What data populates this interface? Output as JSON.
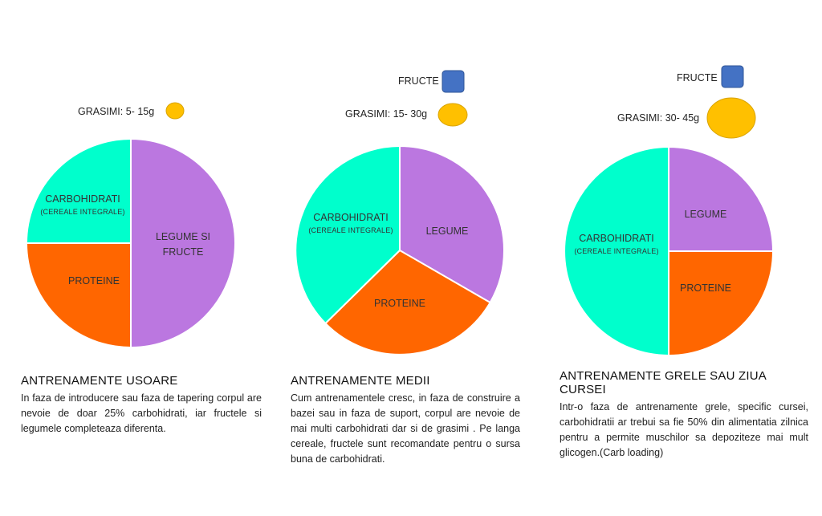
{
  "colors": {
    "carbohidrati": "#00ffcc",
    "proteine": "#ff6600",
    "legume": "#bb77e0",
    "grasimi": "#ffc000",
    "fructe": "#4472c4",
    "divider": "#ffffff"
  },
  "panels": [
    {
      "grasimi_label": "GRASIMI: 5- 15g",
      "fructe_label": null,
      "slices": [
        {
          "key": "legume",
          "label": "LEGUME SI FRUCTE",
          "label_lines": [
            "LEGUME SI",
            "FRUCTE"
          ],
          "sublabel": "",
          "share": 50,
          "color": "#bb77e0"
        },
        {
          "key": "proteine",
          "label": "PROTEINE",
          "label_lines": [
            "PROTEINE"
          ],
          "sublabel": "",
          "share": 25,
          "color": "#ff6600"
        },
        {
          "key": "carbohidrati",
          "label": "CARBOHIDRATI",
          "label_lines": [
            "CARBOHIDRATI"
          ],
          "sublabel": "(CEREALE  INTEGRALE)",
          "share": 25,
          "color": "#00ffcc"
        }
      ],
      "title": "ANTRENAMENTE USOARE",
      "body": "In faza de introducere sau faza de tapering corpul are nevoie de doar 25% carbohidrati, iar fructele si legumele completeaza diferenta."
    },
    {
      "grasimi_label": "GRASIMI: 15- 30g",
      "fructe_label": "FRUCTE",
      "slices": [
        {
          "key": "legume",
          "label": "LEGUME",
          "label_lines": [
            "LEGUME"
          ],
          "sublabel": "",
          "share": 33.33,
          "color": "#bb77e0"
        },
        {
          "key": "proteine",
          "label": "PROTEINE",
          "label_lines": [
            "PROTEINE"
          ],
          "sublabel": "",
          "share": 33.33,
          "color": "#ff6600"
        },
        {
          "key": "carbohidrati",
          "label": "CARBOHIDRATI",
          "label_lines": [
            "CARBOHIDRATI"
          ],
          "sublabel": "(CEREALE  INTEGRALE)",
          "share": 33.33,
          "color": "#00ffcc"
        }
      ],
      "title": "ANTRENAMENTE MEDII",
      "body": "Cum antrenamentele cresc, in faza de construire a bazei sau in faza de suport, corpul are nevoie de mai multi carbohidrati dar si de grasimi . Pe langa cereale, fructele sunt recomandate pentru o sursa buna de carbohidrati."
    },
    {
      "grasimi_label": "GRASIMI: 30- 45g",
      "fructe_label": "FRUCTE",
      "slices": [
        {
          "key": "legume",
          "label": "LEGUME",
          "label_lines": [
            "LEGUME"
          ],
          "sublabel": "",
          "share": 25,
          "color": "#bb77e0"
        },
        {
          "key": "proteine",
          "label": "PROTEINE",
          "label_lines": [
            "PROTEINE"
          ],
          "sublabel": "",
          "share": 25,
          "color": "#ff6600"
        },
        {
          "key": "carbohidrati",
          "label": "CARBOHIDRATI",
          "label_lines": [
            "CARBOHIDRATI"
          ],
          "sublabel": "(CEREALE  INTEGRALE)",
          "share": 50,
          "color": "#00ffcc"
        }
      ],
      "title": "ANTRENAMENTE GRELE SAU ZIUA CURSEI",
      "body": "Intr-o faza de antrenamente grele, specific cursei, carbohidratii ar trebui  sa fie 50% din alimentatia zilnica pentru a permite  muschilor sa depoziteze mai mult glicogen.(Carb loading)"
    }
  ]
}
